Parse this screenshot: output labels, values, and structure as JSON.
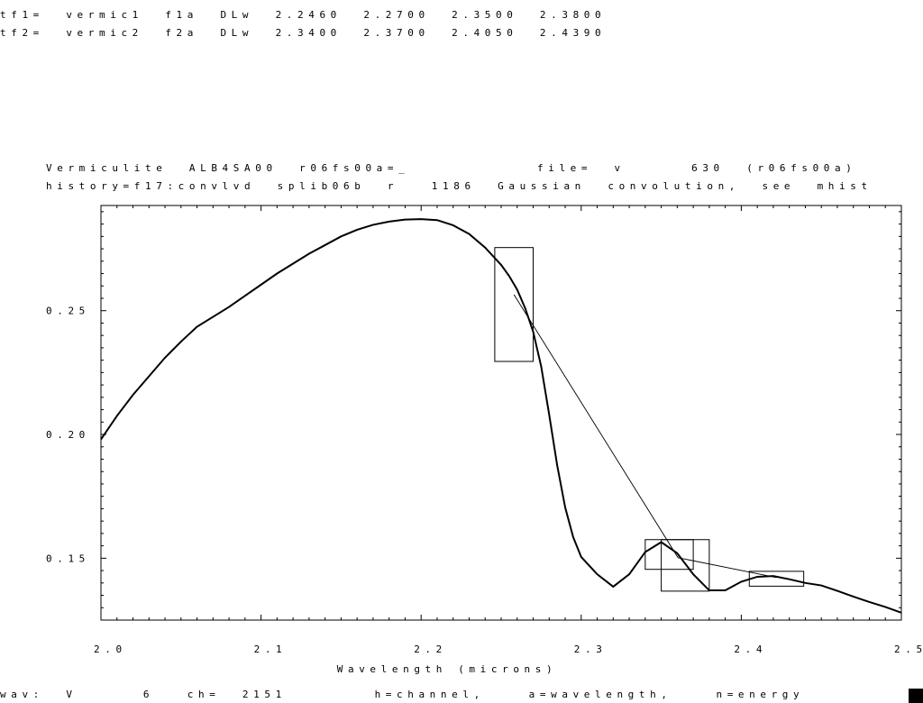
{
  "header": {
    "tf1": "tf1=  vermic1  f1a  DLw  2.2460  2.2700  2.3500  2.3800",
    "tf2": "tf2=  vermic2  f2a  DLw  2.3400  2.3700  2.4050  2.4390"
  },
  "plot_title": {
    "line1_left": "Vermiculite  ALB4SA00  r06fs00a=_",
    "line1_right": "file=  v      630  (r06fs00a)",
    "line2": "history=f17:convlvd  splib06b  r   1186  Gaussian  convolution,  see  mhist"
  },
  "footer": {
    "status": "wav:  V      6   ch=  2151        h=channel,    a=wavelength,    n=energy"
  },
  "chart_data": {
    "type": "line",
    "title": "Vermiculite  ALB4SA00  r06fs00a=_",
    "xlabel": "Wavelength  (microns)",
    "ylabel": "",
    "xlim": [
      2.0,
      2.5
    ],
    "ylim": [
      0.125,
      0.2925
    ],
    "xticks": [
      2.0,
      2.1,
      2.2,
      2.3,
      2.4,
      2.5
    ],
    "xtick_labels": [
      "2.0",
      "2.1",
      "2.2",
      "2.3",
      "2.4",
      "2.5"
    ],
    "yticks": [
      0.15,
      0.2,
      0.25
    ],
    "ytick_labels": [
      "0.15",
      "0.20",
      "0.25"
    ],
    "grid": false,
    "series": [
      {
        "x": [
          2.0,
          2.01,
          2.02,
          2.03,
          2.04,
          2.05,
          2.06,
          2.07,
          2.08,
          2.09,
          2.1,
          2.11,
          2.12,
          2.13,
          2.14,
          2.15,
          2.16,
          2.17,
          2.18,
          2.19,
          2.2,
          2.21,
          2.22,
          2.23,
          2.24,
          2.25,
          2.255,
          2.26,
          2.265,
          2.27,
          2.275,
          2.28,
          2.285,
          2.29,
          2.295,
          2.3,
          2.31,
          2.32,
          2.33,
          2.34,
          2.35,
          2.36,
          2.37,
          2.38,
          2.39,
          2.4,
          2.41,
          2.42,
          2.43,
          2.44,
          2.45,
          2.46,
          2.47,
          2.48,
          2.49,
          2.5
        ],
        "y": [
          0.198,
          0.2075,
          0.216,
          0.2235,
          0.231,
          0.2375,
          0.2435,
          0.2475,
          0.2515,
          0.256,
          0.2605,
          0.265,
          0.269,
          0.273,
          0.2765,
          0.28,
          0.2827,
          0.2847,
          0.286,
          0.2868,
          0.287,
          0.2866,
          0.2845,
          0.281,
          0.2755,
          0.2685,
          0.264,
          0.2585,
          0.251,
          0.2415,
          0.2275,
          0.208,
          0.1875,
          0.1705,
          0.1585,
          0.1505,
          0.1435,
          0.1385,
          0.1435,
          0.1525,
          0.1565,
          0.152,
          0.1435,
          0.137,
          0.137,
          0.1405,
          0.1425,
          0.1428,
          0.1415,
          0.14,
          0.139,
          0.1368,
          0.1345,
          0.1323,
          0.1303,
          0.128
        ]
      }
    ],
    "continuum": {
      "x": [
        2.258,
        2.3605,
        2.422
      ],
      "y": [
        0.2565,
        0.1502,
        0.1422
      ]
    },
    "feature_boxes": [
      {
        "x0": 2.246,
        "x1": 2.27,
        "y0": 0.2295,
        "y1": 0.2755
      },
      {
        "x0": 2.34,
        "x1": 2.37,
        "y0": 0.1455,
        "y1": 0.1575
      },
      {
        "x0": 2.35,
        "x1": 2.38,
        "y0": 0.1367,
        "y1": 0.1575
      },
      {
        "x0": 2.405,
        "x1": 2.439,
        "y0": 0.1387,
        "y1": 0.1447
      }
    ]
  }
}
